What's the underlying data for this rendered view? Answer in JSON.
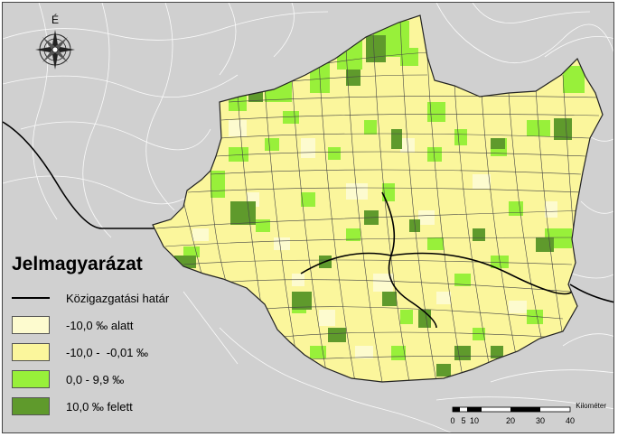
{
  "map": {
    "north_label": "É",
    "legend": {
      "title": "Jelmagyarázat",
      "boundary_label": "Közigazgatási határ",
      "classes": [
        {
          "label": "-10,0 ‰ alatt",
          "color": "#fdfbcf"
        },
        {
          "label": "-10,0 -  -0,01 ‰",
          "color": "#fbf69c"
        },
        {
          "label": "0,0 - 9,9 ‰",
          "color": "#98f03a"
        },
        {
          "label": "10,0 ‰ felett",
          "color": "#5f9a2c"
        }
      ]
    },
    "scale_bar": {
      "unit": "Kilométer",
      "ticks": [
        "0",
        "5",
        "10",
        "20",
        "30",
        "40"
      ]
    },
    "colors": {
      "background_land": "#d0d0d0",
      "outside_boundaries": "#ffffff",
      "internal_boundaries": "#333333"
    }
  }
}
